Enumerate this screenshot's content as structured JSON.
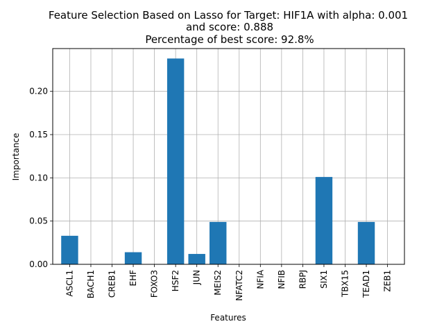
{
  "chart_data": {
    "type": "bar",
    "title_lines": [
      "Feature Selection Based on Lasso for Target: HIF1A with alpha: 0.001",
      "and score: 0.888",
      "Percentage of best score: 92.8%"
    ],
    "xlabel": "Features",
    "ylabel": "Importance",
    "categories": [
      "ASCL1",
      "BACH1",
      "CREB1",
      "EHF",
      "FOXO3",
      "HSF2",
      "JUN",
      "MEIS2",
      "NFATC2",
      "NFIA",
      "NFIB",
      "RBPJ",
      "SIX1",
      "TBX15",
      "TEAD1",
      "ZEB1"
    ],
    "values": [
      0.033,
      0.0,
      0.0,
      0.014,
      0.0,
      0.238,
      0.012,
      0.049,
      0.0,
      0.0,
      0.0,
      0.0,
      0.101,
      0.0,
      0.049,
      0.0
    ],
    "ylim": [
      0.0,
      0.2495
    ],
    "yticks": [
      "0.00",
      "0.05",
      "0.10",
      "0.15",
      "0.20"
    ],
    "ytick_values": [
      0.0,
      0.05,
      0.1,
      0.15,
      0.2
    ],
    "grid": true,
    "bar_color": "#1f77b4",
    "grid_color": "#b0b0b0"
  }
}
